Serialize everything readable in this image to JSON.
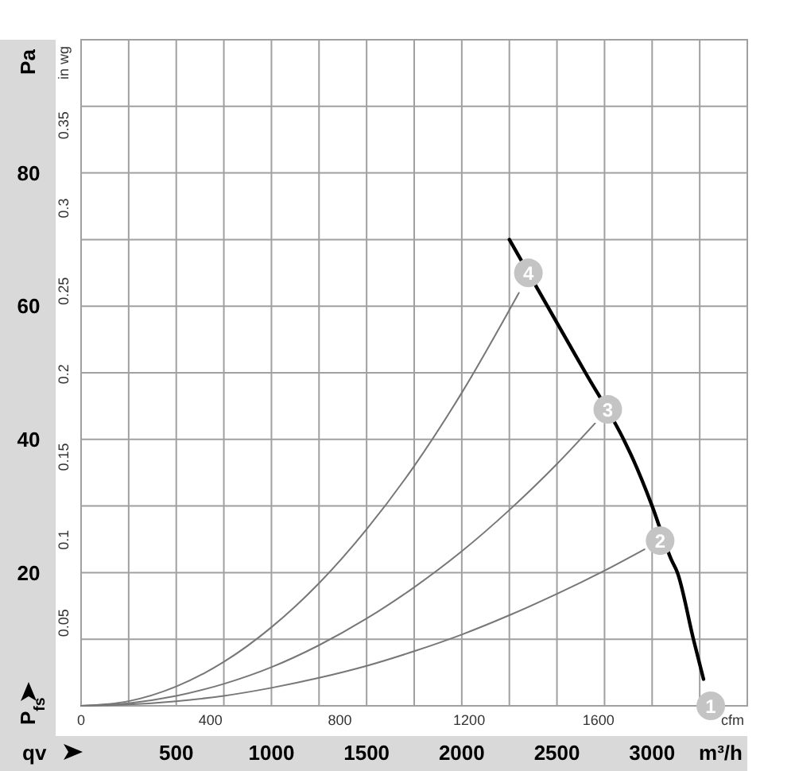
{
  "chart_data": {
    "type": "line",
    "xlabel": "qv",
    "ylabel": "P$_{fs}$",
    "x2label": "cfm",
    "y2label": "in wg",
    "annotations": [
      "Pa",
      "m³/h",
      {
        "text": "1",
        "x": 3308,
        "y": 0
      },
      {
        "text": "2",
        "x": 3042,
        "y": 24.8
      },
      {
        "text": "3",
        "x": 2767,
        "y": 44.5
      },
      {
        "text": "4",
        "x": 2350,
        "y": 65
      }
    ],
    "xlim": [
      0,
      3500
    ],
    "xticks": [
      {
        "value": 250,
        "label": null
      },
      500,
      {
        "value": 750,
        "label": null
      },
      1000,
      {
        "value": 1250,
        "label": null
      },
      1500,
      {
        "value": 1750,
        "label": null
      },
      2000,
      {
        "value": 2250,
        "label": null
      },
      2500,
      {
        "value": 2750,
        "label": null
      },
      3000,
      {
        "value": 3250,
        "label": null
      }
    ],
    "ylim": [
      0,
      100
    ],
    "yticks": [
      {
        "value": 10,
        "label": null
      },
      20,
      {
        "value": 30,
        "label": null
      },
      40,
      {
        "value": 50,
        "label": null
      },
      60,
      {
        "value": 70,
        "label": null
      },
      80,
      {
        "value": 90,
        "label": null
      }
    ],
    "x2lim": [
      0,
      2060
    ],
    "x2ticks": [
      0,
      400,
      800,
      1200,
      1600
    ],
    "y2lim": [
      0,
      0.4016
    ],
    "y2ticks": [
      0.05,
      0.1,
      0.15,
      0.2,
      0.25,
      0.3,
      0.35
    ],
    "grid": true,
    "marker": "none",
    "line_style": "solid",
    "series": [
      {
        "color": "#000000",
        "x": [
          2250,
          2450,
          2550,
          2650,
          2850,
          2900,
          3000,
          3100,
          3133,
          3217,
          3270
        ],
        "values": [
          70,
          60,
          55,
          50,
          40,
          37,
          30,
          22,
          20,
          10,
          4
        ]
      },
      {
        "color": "#777777",
        "x": [
          0,
          250,
          500,
          750,
          1000,
          1250,
          1500,
          1750,
          2000,
          2300
        ],
        "values": [
          0,
          0.7,
          2.9,
          6.6,
          11.8,
          18.4,
          26.5,
          36,
          47,
          62
        ]
      },
      {
        "color": "#777777",
        "x": [
          0,
          250,
          500,
          750,
          1000,
          1250,
          1500,
          1750,
          2000,
          2250,
          2500,
          2700
        ],
        "values": [
          0,
          0.4,
          1.5,
          3.3,
          5.8,
          9.1,
          13.1,
          17.8,
          23.2,
          29.4,
          36.3,
          42.4
        ]
      },
      {
        "color": "#777777",
        "x": [
          0,
          250,
          500,
          750,
          1000,
          1250,
          1500,
          1750,
          2000,
          2250,
          2500,
          2750,
          2960
        ],
        "values": [
          0,
          0.2,
          0.7,
          1.5,
          2.7,
          4.2,
          6.0,
          8.2,
          10.7,
          13.6,
          16.8,
          20.3,
          23.5
        ]
      }
    ]
  }
}
